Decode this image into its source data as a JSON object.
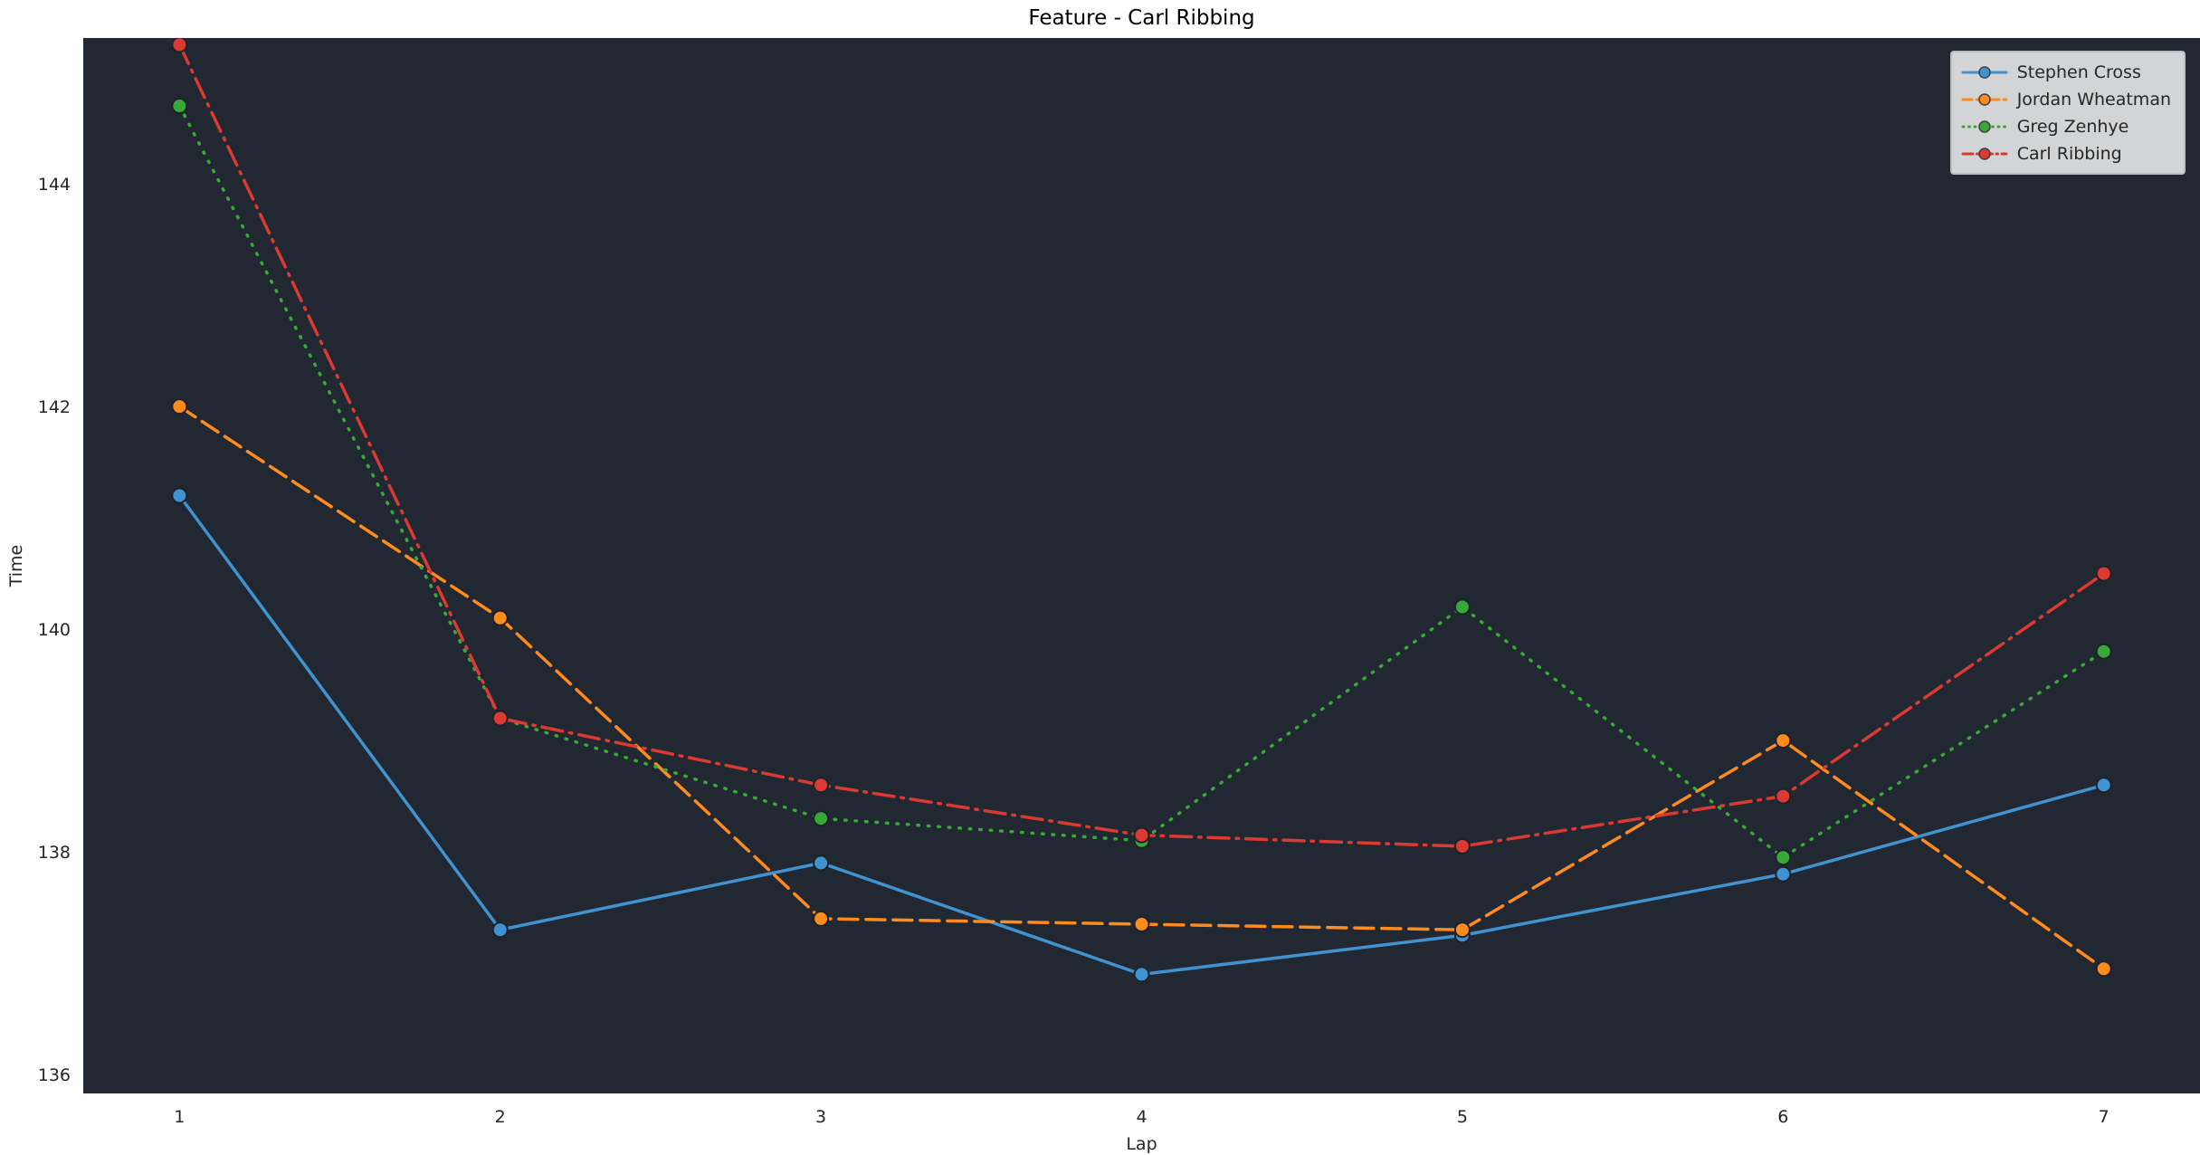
{
  "title": "Feature - Carl Ribbing",
  "chart_data": {
    "type": "line",
    "title": "Feature - Carl Ribbing",
    "xlabel": "Lap",
    "ylabel": "Time",
    "x": [
      1,
      2,
      3,
      4,
      5,
      6,
      7
    ],
    "xticks": [
      1,
      2,
      3,
      4,
      5,
      6,
      7
    ],
    "yticks": [
      136,
      138,
      140,
      142,
      144
    ],
    "xlim": [
      0.7,
      7.3
    ],
    "ylim": [
      135.83,
      145.31
    ],
    "grid": false,
    "legend_position": "upper right",
    "fig_bg": "#ffffff",
    "plot_bg": "#212832",
    "series": [
      {
        "name": "Stephen Cross",
        "color": "#4093d0",
        "linestyle": "solid",
        "marker": "o",
        "values": [
          141.2,
          137.3,
          137.9,
          136.9,
          137.25,
          137.8,
          138.6
        ]
      },
      {
        "name": "Jordan Wheatman",
        "color": "#ff8a1e",
        "linestyle": "dashed",
        "marker": "o",
        "values": [
          142.0,
          140.1,
          137.4,
          137.35,
          137.3,
          139.0,
          136.95
        ]
      },
      {
        "name": "Greg Zenhye",
        "color": "#38a838",
        "linestyle": "dotted",
        "marker": "o",
        "values": [
          144.7,
          139.2,
          138.3,
          138.1,
          140.2,
          137.95,
          139.8
        ]
      },
      {
        "name": "Carl Ribbing",
        "color": "#da3a32",
        "linestyle": "dashdot",
        "marker": "o",
        "values": [
          145.25,
          139.2,
          138.6,
          138.15,
          138.05,
          138.5,
          140.5
        ]
      }
    ]
  }
}
